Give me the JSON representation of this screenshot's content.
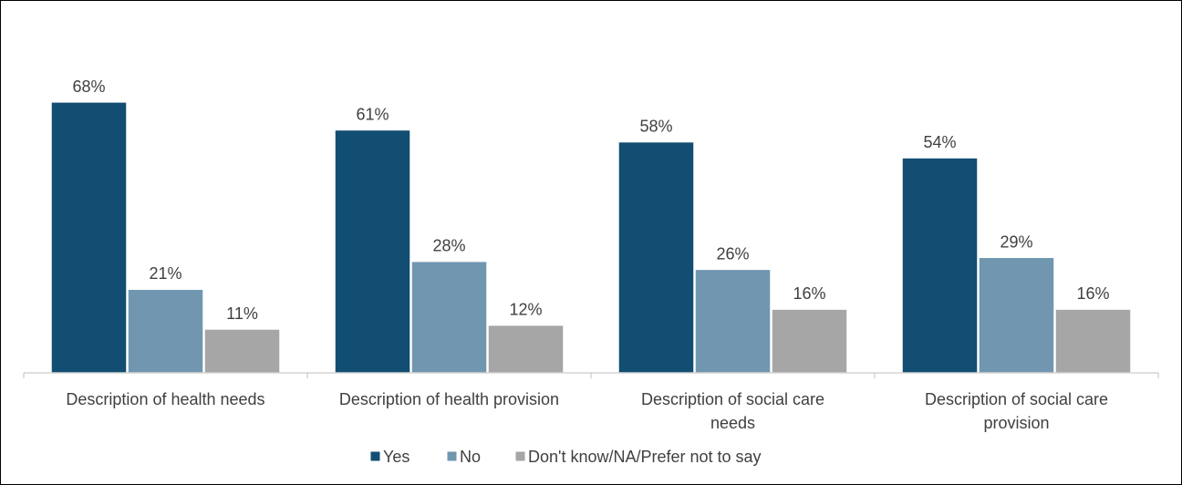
{
  "chart_data": {
    "type": "bar",
    "categories": [
      [
        "Description of health needs"
      ],
      [
        "Description of health provision"
      ],
      [
        "Description of social care",
        "needs"
      ],
      [
        "Description of social care",
        "provision"
      ]
    ],
    "series": [
      {
        "name": "Yes",
        "values": [
          68,
          61,
          58,
          54
        ],
        "labels": [
          "68%",
          "61%",
          "58%",
          "54%"
        ],
        "color": "#124e72"
      },
      {
        "name": "No",
        "values": [
          21,
          28,
          26,
          29
        ],
        "labels": [
          "21%",
          "28%",
          "26%",
          "29%"
        ],
        "color": "#7196b0"
      },
      {
        "name": "Don't know/NA/Prefer not to say",
        "values": [
          11,
          12,
          16,
          16
        ],
        "labels": [
          "11%",
          "12%",
          "16%",
          "16%"
        ],
        "color": "#a6a6a6"
      }
    ],
    "ylim": [
      0,
      70
    ],
    "grid": false,
    "legend_position": "bottom",
    "title": "",
    "xlabel": "",
    "ylabel": ""
  }
}
